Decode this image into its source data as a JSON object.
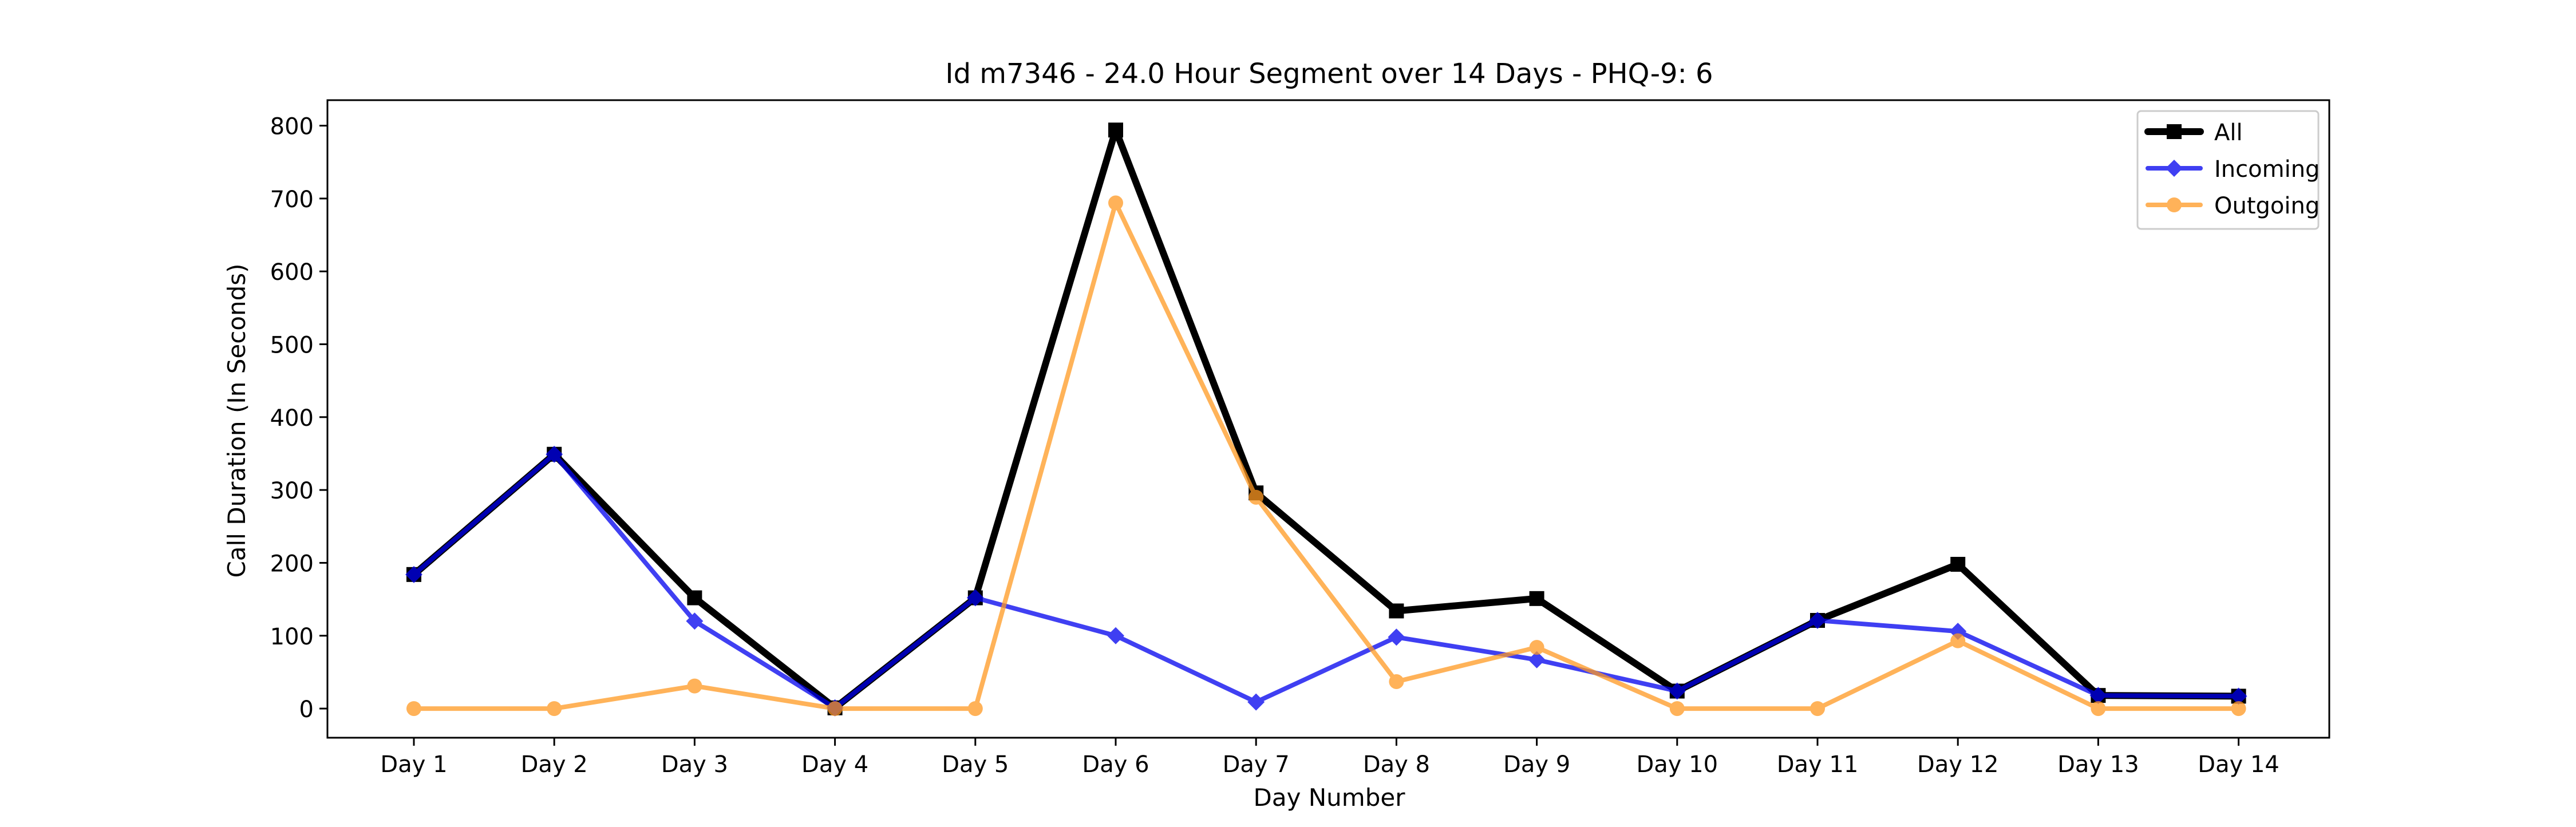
{
  "chart_data": {
    "type": "line",
    "title": "Id m7346 - 24.0 Hour Segment over 14 Days - PHQ-9: 6",
    "xlabel": "Day Number",
    "ylabel": "Call Duration (In Seconds)",
    "categories": [
      "Day 1",
      "Day 2",
      "Day 3",
      "Day 4",
      "Day 5",
      "Day 6",
      "Day 7",
      "Day 8",
      "Day 9",
      "Day 10",
      "Day 11",
      "Day 12",
      "Day 13",
      "Day 14"
    ],
    "ylim": [
      -40,
      835
    ],
    "yticks": [
      0,
      100,
      200,
      300,
      400,
      500,
      600,
      700,
      800
    ],
    "grid": false,
    "legend_position": "top-right",
    "series": [
      {
        "name": "All",
        "color": "#000000",
        "marker": "square",
        "values": [
          184,
          349,
          152,
          1,
          152,
          794,
          296,
          134,
          151,
          24,
          121,
          198,
          18,
          17
        ]
      },
      {
        "name": "Incoming",
        "color": "#0000ee",
        "marker": "diamond",
        "values": [
          184,
          349,
          120,
          1,
          152,
          100,
          9,
          98,
          67,
          24,
          121,
          106,
          18,
          17
        ]
      },
      {
        "name": "Outgoing",
        "color": "#ff9922",
        "marker": "circle",
        "values": [
          0,
          0,
          31,
          0,
          0,
          694,
          290,
          37,
          84,
          0,
          0,
          93,
          0,
          0
        ]
      }
    ]
  }
}
